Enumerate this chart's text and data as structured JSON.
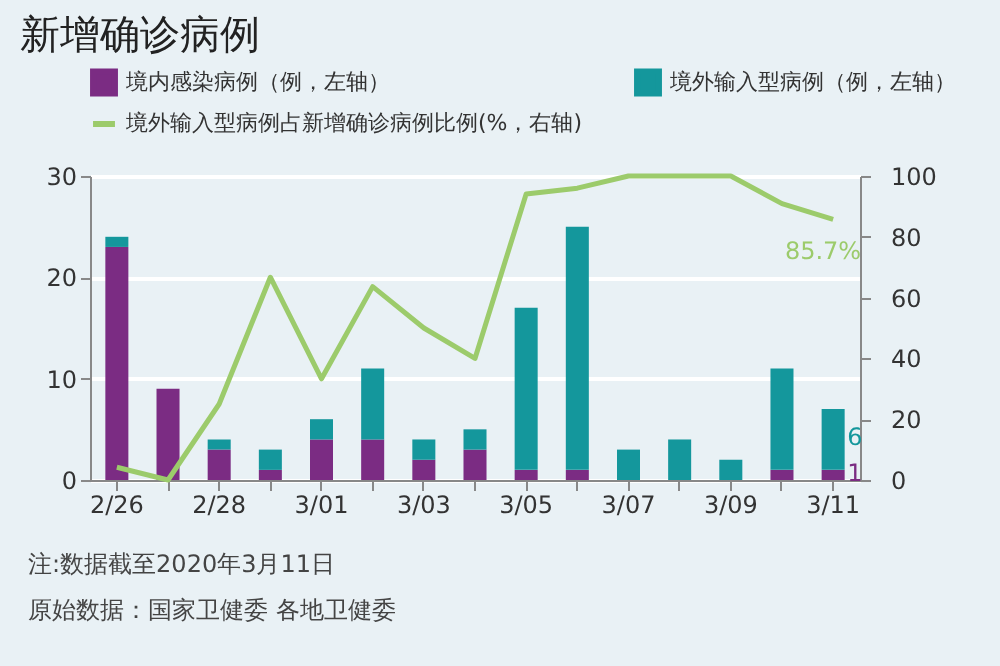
{
  "chart_data": {
    "type": "bar",
    "title": "新增确诊病例",
    "categories": [
      "2/26",
      null,
      "2/28",
      null,
      "3/01",
      null,
      "3/03",
      null,
      "3/05",
      null,
      "3/07",
      null,
      "3/09",
      null,
      "3/11"
    ],
    "stacked": true,
    "series": [
      {
        "name": "境内感染病例（例，左轴）",
        "color": "#7b2c83",
        "values": [
          23,
          9,
          3,
          1,
          4,
          4,
          2,
          3,
          1,
          1,
          0,
          0,
          0,
          1,
          1
        ],
        "value_labels": [
          null,
          null,
          null,
          null,
          null,
          null,
          null,
          null,
          null,
          null,
          null,
          null,
          null,
          null,
          "1"
        ]
      },
      {
        "name": "境外输入型病例（例，左轴）",
        "color": "#14979c",
        "values": [
          1,
          0,
          1,
          2,
          2,
          7,
          2,
          2,
          16,
          24,
          3,
          4,
          2,
          10,
          6
        ],
        "value_labels": [
          null,
          null,
          null,
          null,
          null,
          null,
          null,
          null,
          null,
          null,
          null,
          null,
          null,
          null,
          "6"
        ]
      },
      {
        "name": "境外输入型病例占新增确诊病例比例(%，右轴)",
        "type": "line",
        "axis": "y2",
        "color": "#9ccb6b",
        "values": [
          4.2,
          0,
          25,
          66.7,
          33.3,
          63.6,
          50,
          40,
          94.1,
          96,
          100,
          100,
          100,
          90.9,
          85.7
        ],
        "value_labels": [
          null,
          null,
          null,
          null,
          null,
          null,
          null,
          null,
          null,
          null,
          null,
          null,
          null,
          null,
          "85.7%"
        ]
      }
    ],
    "ylim": [
      0,
      30
    ],
    "yticks": [
      0,
      10,
      20,
      30
    ],
    "y2lim": [
      0,
      100
    ],
    "y2ticks": [
      0,
      20,
      40,
      60,
      80,
      100
    ],
    "grid": "y",
    "legend": "top",
    "marker": "none",
    "line_style": "solid",
    "annotations": [
      "注:数据截至2020年3月11日",
      "原始数据：国家卫健委 各地卫健委"
    ]
  }
}
